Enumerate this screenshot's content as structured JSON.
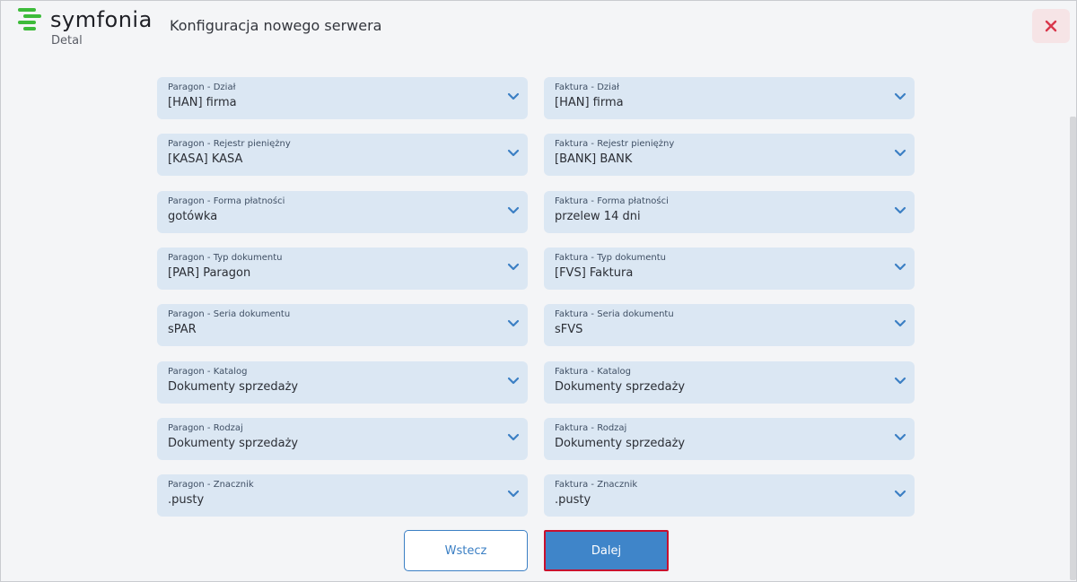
{
  "brand": {
    "name": "symfonia",
    "product": "Detal",
    "accent": "#3dbb3a"
  },
  "header": {
    "title": "Konfiguracja nowego serwera",
    "close_icon": "close-icon",
    "close_color": "#d9364a"
  },
  "colors": {
    "field_bg": "#dbe7f3",
    "chevron": "#3b7fc4",
    "primary": "#3f85c9"
  },
  "paragon": [
    {
      "label": "Paragon - Dział",
      "value": "[HAN] firma"
    },
    {
      "label": "Paragon - Rejestr pieniężny",
      "value": "[KASA] KASA"
    },
    {
      "label": "Paragon - Forma płatności",
      "value": "gotówka"
    },
    {
      "label": "Paragon - Typ dokumentu",
      "value": "[PAR] Paragon"
    },
    {
      "label": "Paragon - Seria dokumentu",
      "value": "sPAR"
    },
    {
      "label": "Paragon - Katalog",
      "value": "Dokumenty sprzedaży"
    },
    {
      "label": "Paragon - Rodzaj",
      "value": "Dokumenty sprzedaży"
    },
    {
      "label": "Paragon - Znacznik",
      "value": ".pusty"
    }
  ],
  "faktura": [
    {
      "label": "Faktura - Dział",
      "value": "[HAN] firma"
    },
    {
      "label": "Faktura - Rejestr pieniężny",
      "value": "[BANK] BANK"
    },
    {
      "label": "Faktura - Forma płatności",
      "value": "przelew 14 dni"
    },
    {
      "label": "Faktura - Typ dokumentu",
      "value": "[FVS] Faktura"
    },
    {
      "label": "Faktura - Seria dokumentu",
      "value": "sFVS"
    },
    {
      "label": "Faktura - Katalog",
      "value": "Dokumenty sprzedaży"
    },
    {
      "label": "Faktura - Rodzaj",
      "value": "Dokumenty sprzedaży"
    },
    {
      "label": "Faktura - Znacznik",
      "value": ".pusty"
    }
  ],
  "actions": {
    "back_label": "Wstecz",
    "next_label": "Dalej"
  }
}
